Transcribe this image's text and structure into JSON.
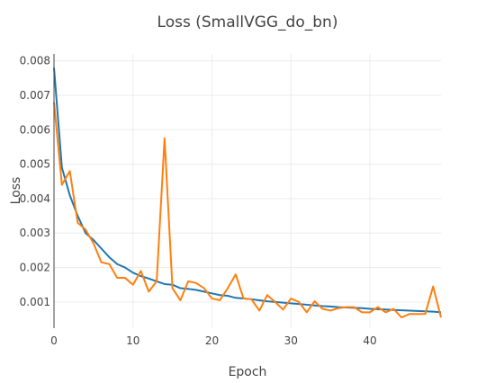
{
  "chart_data": {
    "type": "line",
    "title": "Loss (SmallVGG_do_bn)",
    "xlabel": "Epoch",
    "ylabel": "Loss",
    "xlim": [
      0,
      49
    ],
    "ylim": [
      0.00024,
      0.0082
    ],
    "x_ticks": [
      0,
      10,
      20,
      30,
      40
    ],
    "y_ticks": [
      0.001,
      0.002,
      0.003,
      0.004,
      0.005,
      0.006,
      0.007,
      0.008
    ],
    "grid": true,
    "series": [
      {
        "color": "#1f77b4",
        "x": [
          0,
          1,
          2,
          3,
          4,
          5,
          6,
          7,
          8,
          9,
          10,
          11,
          12,
          13,
          14,
          15,
          16,
          17,
          18,
          19,
          20,
          21,
          22,
          23,
          24,
          25,
          26,
          27,
          28,
          29,
          30,
          31,
          32,
          33,
          34,
          35,
          36,
          37,
          38,
          39,
          40,
          41,
          42,
          43,
          44,
          45,
          46,
          47,
          48,
          49
        ],
        "y": [
          0.0078,
          0.0049,
          0.0041,
          0.0035,
          0.003,
          0.0028,
          0.00255,
          0.0023,
          0.0021,
          0.002,
          0.00185,
          0.00175,
          0.00168,
          0.0016,
          0.00152,
          0.0015,
          0.0014,
          0.00138,
          0.00135,
          0.0013,
          0.00125,
          0.0012,
          0.00118,
          0.00112,
          0.0011,
          0.00108,
          0.00105,
          0.00102,
          0.001,
          0.00098,
          0.00096,
          0.00094,
          0.00092,
          0.0009,
          0.00088,
          0.00087,
          0.00085,
          0.00084,
          0.00083,
          0.00082,
          0.0008,
          0.00079,
          0.00078,
          0.00077,
          0.00076,
          0.00075,
          0.00074,
          0.00073,
          0.00072,
          0.0007
        ]
      },
      {
        "color": "#ff7f0e",
        "x": [
          0,
          1,
          2,
          3,
          4,
          5,
          6,
          7,
          8,
          9,
          10,
          11,
          12,
          13,
          14,
          15,
          16,
          17,
          18,
          19,
          20,
          21,
          22,
          23,
          24,
          25,
          26,
          27,
          28,
          29,
          30,
          31,
          32,
          33,
          34,
          35,
          36,
          37,
          38,
          39,
          40,
          41,
          42,
          43,
          44,
          45,
          46,
          47,
          48,
          49
        ],
        "y": [
          0.0068,
          0.0044,
          0.0048,
          0.0033,
          0.0031,
          0.0027,
          0.00215,
          0.0021,
          0.0017,
          0.0017,
          0.0015,
          0.0019,
          0.0013,
          0.0016,
          0.00575,
          0.0014,
          0.00105,
          0.0016,
          0.00155,
          0.0014,
          0.0011,
          0.00105,
          0.0014,
          0.0018,
          0.0011,
          0.00108,
          0.00075,
          0.0012,
          0.001,
          0.00078,
          0.0011,
          0.001,
          0.0007,
          0.00102,
          0.0008,
          0.00075,
          0.00082,
          0.00085,
          0.00085,
          0.0007,
          0.0007,
          0.00085,
          0.0007,
          0.0008,
          0.00055,
          0.00065,
          0.00065,
          0.00065,
          0.00145,
          0.00055
        ]
      }
    ]
  }
}
